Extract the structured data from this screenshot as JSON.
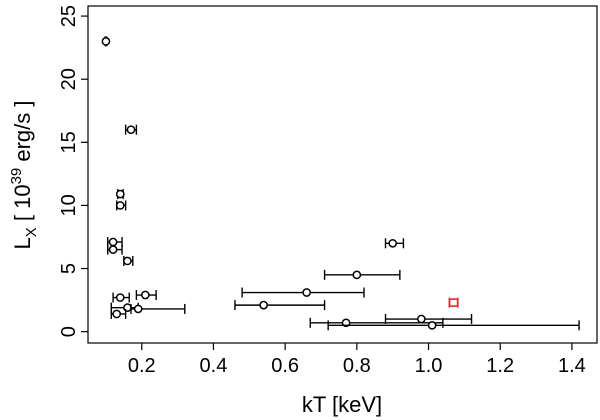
{
  "chart_data": {
    "type": "scatter",
    "xlabel": "kT [keV]",
    "ylabel": {
      "prefix": "L",
      "subscript": "X",
      "bracket_open": "[",
      "base": "10",
      "exponent": "39",
      "unit": "erg/s",
      "bracket_close": "]"
    },
    "xlim": [
      0.05,
      1.47
    ],
    "ylim": [
      -0.9,
      25.8
    ],
    "x_ticks": [
      {
        "value": 0.2,
        "label": "0.2"
      },
      {
        "value": 0.4,
        "label": "0.4"
      },
      {
        "value": 0.6,
        "label": "0.6"
      },
      {
        "value": 0.8,
        "label": "0.8"
      },
      {
        "value": 1.0,
        "label": "1.0"
      },
      {
        "value": 1.2,
        "label": "1.2"
      },
      {
        "value": 1.4,
        "label": "1.4"
      }
    ],
    "y_ticks": [
      {
        "value": 0,
        "label": "0"
      },
      {
        "value": 5,
        "label": "5"
      },
      {
        "value": 10,
        "label": "10"
      },
      {
        "value": 15,
        "label": "15"
      },
      {
        "value": 20,
        "label": "20"
      },
      {
        "value": 25,
        "label": "25"
      }
    ],
    "grid": false,
    "legend": "none",
    "series": [
      {
        "marker": "circle",
        "color": "#000000",
        "points": [
          {
            "x": 0.1,
            "y": 23.0,
            "xerr": [
              0.098,
              0.102
            ]
          },
          {
            "x": 0.17,
            "y": 16.0,
            "xerr": [
              0.155,
              0.185
            ]
          },
          {
            "x": 0.14,
            "y": 10.9,
            "xerr": [
              0.133,
              0.148
            ]
          },
          {
            "x": 0.14,
            "y": 10.0,
            "xerr": [
              0.13,
              0.155
            ]
          },
          {
            "x": 0.12,
            "y": 7.1,
            "xerr": [
              0.105,
              0.145
            ]
          },
          {
            "x": 0.12,
            "y": 6.5,
            "xerr": [
              0.105,
              0.145
            ]
          },
          {
            "x": 0.16,
            "y": 5.6,
            "xerr": [
              0.15,
              0.175
            ]
          },
          {
            "x": 0.9,
            "y": 7.0,
            "xerr": [
              0.88,
              0.93
            ]
          },
          {
            "x": 0.8,
            "y": 4.5,
            "xerr": [
              0.71,
              0.92
            ]
          },
          {
            "x": 0.66,
            "y": 3.1,
            "xerr": [
              0.48,
              0.82
            ]
          },
          {
            "x": 0.21,
            "y": 2.9,
            "xerr": [
              0.185,
              0.24
            ]
          },
          {
            "x": 0.14,
            "y": 2.7,
            "xerr": [
              0.12,
              0.165
            ]
          },
          {
            "x": 0.54,
            "y": 2.1,
            "xerr": [
              0.46,
              0.71
            ]
          },
          {
            "x": 0.16,
            "y": 1.9,
            "xerr": [
              0.115,
              0.19
            ]
          },
          {
            "x": 0.19,
            "y": 1.8,
            "xerr": [
              0.17,
              0.32
            ]
          },
          {
            "x": 0.13,
            "y": 1.4,
            "xerr": [
              0.115,
              0.155
            ]
          },
          {
            "x": 0.98,
            "y": 1.0,
            "xerr": [
              0.88,
              1.12
            ]
          },
          {
            "x": 0.77,
            "y": 0.7,
            "xerr": [
              0.67,
              1.04
            ]
          },
          {
            "x": 1.01,
            "y": 0.5,
            "xerr": [
              0.72,
              1.42
            ]
          }
        ]
      },
      {
        "marker": "square",
        "color": "#e8262a",
        "points": [
          {
            "x": 1.07,
            "y": 2.3,
            "xerr": [
              1.058,
              1.082
            ]
          }
        ]
      }
    ]
  }
}
